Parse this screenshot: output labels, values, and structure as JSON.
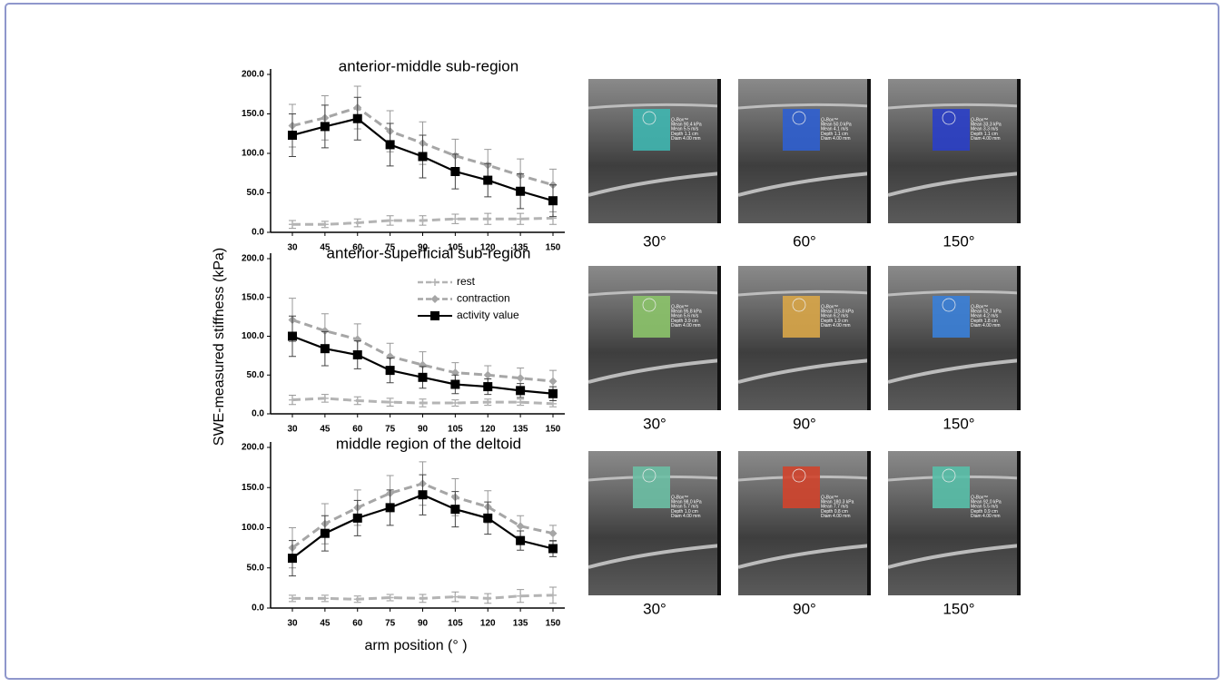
{
  "chart_data": [
    {
      "type": "line",
      "title": "anterior-middle sub-region",
      "categories": [
        "30",
        "45",
        "60",
        "75",
        "90",
        "105",
        "120",
        "135",
        "150"
      ],
      "ylim": [
        0,
        200
      ],
      "yticks": [
        {
          "value": 0,
          "label": "0.0"
        },
        {
          "value": 50,
          "label": "50.0"
        },
        {
          "value": 100,
          "label": "100.0"
        },
        {
          "value": 150,
          "label": "150.0"
        },
        {
          "value": 200,
          "label": "200.0"
        }
      ],
      "legend": false,
      "series": [
        {
          "name": "rest",
          "color": "#b4b4b4",
          "style": "dashed",
          "marker": "plus",
          "values": [
            10,
            10,
            12,
            15,
            15,
            17,
            17,
            17,
            18
          ],
          "errors": [
            5,
            4,
            5,
            6,
            6,
            6,
            7,
            7,
            8
          ]
        },
        {
          "name": "contraction",
          "color": "#a6a6a6",
          "style": "dashed",
          "marker": "diamond",
          "values": [
            135,
            145,
            158,
            128,
            113,
            97,
            85,
            72,
            60
          ],
          "errors": [
            27,
            28,
            27,
            26,
            27,
            21,
            20,
            21,
            20
          ]
        },
        {
          "name": "activity value",
          "color": "#000000",
          "style": "solid",
          "marker": "square",
          "values": [
            123,
            134,
            144,
            111,
            96,
            77,
            66,
            52,
            40
          ],
          "errors": [
            27,
            27,
            27,
            27,
            27,
            22,
            21,
            22,
            20
          ]
        }
      ]
    },
    {
      "type": "line",
      "title": "anterior-superficial sub-region",
      "categories": [
        "30",
        "45",
        "60",
        "75",
        "90",
        "105",
        "120",
        "135",
        "150"
      ],
      "ylim": [
        0,
        200
      ],
      "yticks": [
        {
          "value": 0,
          "label": "0.0"
        },
        {
          "value": 50,
          "label": "50.0"
        },
        {
          "value": 100,
          "label": "100.0"
        },
        {
          "value": 150,
          "label": "150.0"
        },
        {
          "value": 200,
          "label": "200.0"
        }
      ],
      "legend": true,
      "ylabel": "SWE-measured stiffness (kPa)",
      "series": [
        {
          "name": "rest",
          "color": "#b4b4b4",
          "style": "dashed",
          "marker": "plus",
          "values": [
            18,
            20,
            17,
            15,
            14,
            14,
            15,
            15,
            13
          ],
          "errors": [
            6,
            5,
            5,
            5,
            5,
            4,
            4,
            4,
            4
          ]
        },
        {
          "name": "contraction",
          "color": "#a6a6a6",
          "style": "dashed",
          "marker": "diamond",
          "values": [
            121,
            107,
            96,
            74,
            63,
            53,
            50,
            46,
            42
          ],
          "errors": [
            28,
            22,
            20,
            17,
            17,
            13,
            12,
            13,
            14
          ]
        },
        {
          "name": "activity value",
          "color": "#000000",
          "style": "solid",
          "marker": "square",
          "values": [
            100,
            84,
            76,
            56,
            47,
            38,
            35,
            30,
            26
          ],
          "errors": [
            26,
            22,
            18,
            16,
            14,
            12,
            10,
            9,
            9
          ]
        }
      ]
    },
    {
      "type": "line",
      "title": "middle region of the deltoid",
      "categories": [
        "30",
        "45",
        "60",
        "75",
        "90",
        "105",
        "120",
        "135",
        "150"
      ],
      "ylim": [
        0,
        200
      ],
      "yticks": [
        {
          "value": 0,
          "label": "0.0"
        },
        {
          "value": 50,
          "label": "50.0"
        },
        {
          "value": 100,
          "label": "100.0"
        },
        {
          "value": 150,
          "label": "150.0"
        },
        {
          "value": 200,
          "label": "200.0"
        }
      ],
      "legend": false,
      "xlabel": "arm position (°  )",
      "series": [
        {
          "name": "rest",
          "color": "#b4b4b4",
          "style": "dashed",
          "marker": "plus",
          "values": [
            12,
            12,
            11,
            13,
            12,
            14,
            12,
            15,
            16
          ],
          "errors": [
            4,
            4,
            4,
            4,
            5,
            6,
            6,
            8,
            10
          ]
        },
        {
          "name": "contraction",
          "color": "#a6a6a6",
          "style": "dashed",
          "marker": "diamond",
          "values": [
            75,
            105,
            125,
            143,
            155,
            138,
            126,
            102,
            93
          ],
          "errors": [
            25,
            25,
            22,
            22,
            27,
            23,
            20,
            13,
            10
          ]
        },
        {
          "name": "activity value",
          "color": "#000000",
          "style": "solid",
          "marker": "square",
          "values": [
            62,
            93,
            112,
            125,
            141,
            123,
            112,
            84,
            74
          ],
          "errors": [
            22,
            22,
            22,
            22,
            25,
            22,
            20,
            12,
            10
          ]
        }
      ]
    }
  ],
  "images": [
    {
      "angle": "30°",
      "color": "#3fb6b0",
      "qbox": [
        "Q-Box™",
        "Mean 90.4 kPa",
        "Mean 5.5 m/s",
        "Depth 1.1 cm",
        "Diam 4.00 mm"
      ]
    },
    {
      "angle": "60°",
      "color": "#2f5fd0",
      "qbox": [
        "Q-Box™",
        "Mean 50.0 kPa",
        "Mean 4.1 m/s",
        "Depth 1.1 cm",
        "Diam 4.00 mm"
      ]
    },
    {
      "angle": "150°",
      "color": "#2a3fc8",
      "qbox": [
        "Q-Box™",
        "Mean 33.3 kPa",
        "Mean 3.3 m/s",
        "Depth 1.1 cm",
        "Diam 4.00 mm"
      ]
    },
    {
      "angle": "30°",
      "color": "#8cc46a",
      "qbox": [
        "Q-Box™",
        "Mean 95.8 kPa",
        "Mean 5.6 m/s",
        "Depth 3.9 cm",
        "Diam 4.00 mm"
      ]
    },
    {
      "angle": "90°",
      "color": "#d9a648",
      "qbox": [
        "Q-Box™",
        "Mean 115.8 kPa",
        "Mean 6.2 m/s",
        "Depth 1.9 cm",
        "Diam 4.00 mm"
      ]
    },
    {
      "angle": "150°",
      "color": "#3a7fd8",
      "qbox": [
        "Q-Box™",
        "Mean 52.7 kPa",
        "Mean 4.2 m/s",
        "Depth 1.8 cm",
        "Diam 4.00 mm"
      ]
    },
    {
      "angle": "30°",
      "color": "#6cbfa4",
      "qbox": [
        "Q-Box™",
        "Mean 98.0 kPa",
        "Mean 5.7 m/s",
        "Depth 1.0 cm",
        "Diam 4.00 mm"
      ]
    },
    {
      "angle": "90°",
      "color": "#d0442c",
      "qbox": [
        "Q-Box™",
        "Mean 180.3 kPa",
        "Mean 7.7 m/s",
        "Depth 0.8 cm",
        "Diam 4.00 mm"
      ]
    },
    {
      "angle": "150°",
      "color": "#58bfa8",
      "qbox": [
        "Q-Box™",
        "Mean 92.0 kPa",
        "Mean 5.5 m/s",
        "Depth 0.9 cm",
        "Diam 4.00 mm"
      ]
    }
  ]
}
